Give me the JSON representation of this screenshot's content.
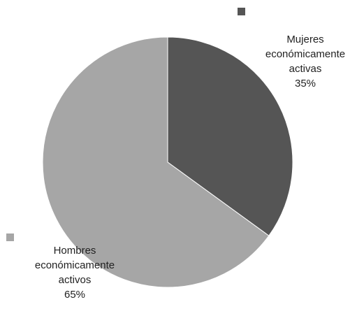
{
  "chart_data": {
    "type": "pie",
    "slices": [
      {
        "label_lines": [
          "Mujeres",
          "económicamente",
          "activas"
        ],
        "percent_label": "35%",
        "value": 35,
        "color": "#555555"
      },
      {
        "label_lines": [
          "Hombres",
          "económicamente",
          "activos"
        ],
        "percent_label": "65%",
        "value": 65,
        "color": "#a6a6a6"
      }
    ],
    "start_angle_deg": 0,
    "direction": "clockwise",
    "legend_markers": "unlabeled square markers",
    "border_color": "#ffffff"
  }
}
